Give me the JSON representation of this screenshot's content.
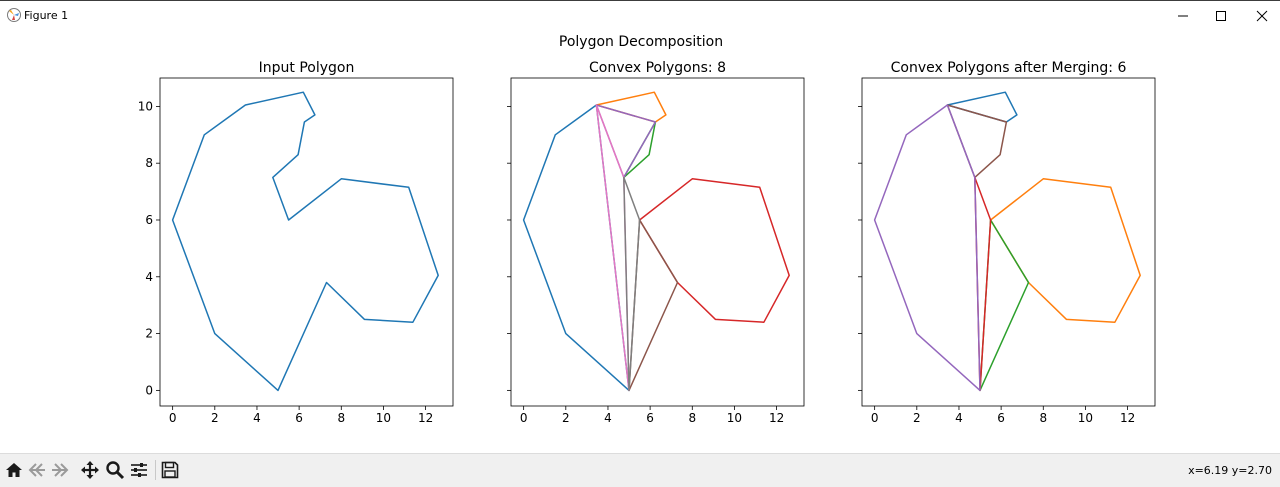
{
  "window": {
    "title": "Figure 1",
    "icons": [
      "matplotlib-icon",
      "minimize-icon",
      "maximize-icon",
      "close-icon"
    ]
  },
  "figure": {
    "suptitle": "Polygon Decomposition",
    "colors": {
      "blue": "#1f77b4",
      "orange": "#ff7f0e",
      "green": "#2ca02c",
      "red": "#d62728",
      "purple": "#9467bd",
      "brown": "#8c564b",
      "pink": "#e377c2",
      "gray": "#7f7f7f"
    }
  },
  "chart_data": [
    {
      "type": "line",
      "title": "Input Polygon",
      "xlim": [
        -0.6,
        13.3
      ],
      "ylim": [
        -0.55,
        11.0
      ],
      "xticks": [
        0,
        2,
        4,
        6,
        8,
        10,
        12
      ],
      "yticks": [
        0,
        2,
        4,
        6,
        8,
        10
      ],
      "xlabel": "",
      "ylabel": "",
      "series": [
        {
          "color": "#1f77b4",
          "points": [
            [
              5.0,
              0.0
            ],
            [
              7.3,
              3.8
            ],
            [
              9.1,
              2.5
            ],
            [
              11.4,
              2.4
            ],
            [
              12.6,
              4.05
            ],
            [
              11.2,
              7.15
            ],
            [
              8.0,
              7.45
            ],
            [
              5.5,
              6.0
            ],
            [
              4.75,
              7.5
            ],
            [
              5.95,
              8.3
            ],
            [
              6.25,
              9.45
            ],
            [
              6.75,
              9.7
            ],
            [
              6.2,
              10.5
            ],
            [
              3.45,
              10.05
            ],
            [
              1.5,
              9.0
            ],
            [
              0.0,
              6.0
            ],
            [
              2.0,
              2.0
            ],
            [
              5.0,
              0.0
            ]
          ]
        }
      ]
    },
    {
      "type": "line",
      "title": "Convex Polygons: 8",
      "xlim": [
        -0.6,
        13.3
      ],
      "ylim": [
        -0.55,
        11.0
      ],
      "xticks": [
        0,
        2,
        4,
        6,
        8,
        10,
        12
      ],
      "yticks": [
        0,
        2,
        4,
        6,
        8,
        10
      ],
      "xlabel": "",
      "ylabel": "",
      "series": [
        {
          "color": "#1f77b4",
          "points": [
            [
              5.0,
              0.0
            ],
            [
              2.0,
              2.0
            ],
            [
              0.0,
              6.0
            ],
            [
              1.5,
              9.0
            ],
            [
              3.45,
              10.05
            ],
            [
              5.0,
              0.0
            ]
          ]
        },
        {
          "color": "#ff7f0e",
          "points": [
            [
              3.45,
              10.05
            ],
            [
              6.2,
              10.5
            ],
            [
              6.75,
              9.7
            ],
            [
              6.25,
              9.45
            ],
            [
              3.45,
              10.05
            ]
          ]
        },
        {
          "color": "#2ca02c",
          "points": [
            [
              6.25,
              9.45
            ],
            [
              5.95,
              8.3
            ],
            [
              4.75,
              7.5
            ],
            [
              6.25,
              9.45
            ]
          ]
        },
        {
          "color": "#d62728",
          "points": [
            [
              5.5,
              6.0
            ],
            [
              8.0,
              7.45
            ],
            [
              11.2,
              7.15
            ],
            [
              12.6,
              4.05
            ],
            [
              11.4,
              2.4
            ],
            [
              9.1,
              2.5
            ],
            [
              7.3,
              3.8
            ],
            [
              5.5,
              6.0
            ]
          ]
        },
        {
          "color": "#9467bd",
          "points": [
            [
              3.45,
              10.05
            ],
            [
              6.25,
              9.45
            ],
            [
              4.75,
              7.5
            ],
            [
              3.45,
              10.05
            ]
          ]
        },
        {
          "color": "#8c564b",
          "points": [
            [
              5.0,
              0.0
            ],
            [
              7.3,
              3.8
            ],
            [
              5.5,
              6.0
            ],
            [
              5.0,
              0.0
            ]
          ]
        },
        {
          "color": "#e377c2",
          "points": [
            [
              3.45,
              10.05
            ],
            [
              4.75,
              7.5
            ],
            [
              5.0,
              0.0
            ],
            [
              3.45,
              10.05
            ]
          ]
        },
        {
          "color": "#7f7f7f",
          "points": [
            [
              4.75,
              7.5
            ],
            [
              5.5,
              6.0
            ],
            [
              5.0,
              0.0
            ],
            [
              4.75,
              7.5
            ]
          ]
        }
      ]
    },
    {
      "type": "line",
      "title": "Convex Polygons after Merging: 6",
      "xlim": [
        -0.6,
        13.3
      ],
      "ylim": [
        -0.55,
        11.0
      ],
      "xticks": [
        0,
        2,
        4,
        6,
        8,
        10,
        12
      ],
      "yticks": [
        0,
        2,
        4,
        6,
        8,
        10
      ],
      "xlabel": "",
      "ylabel": "",
      "series": [
        {
          "color": "#1f77b4",
          "points": [
            [
              3.45,
              10.05
            ],
            [
              6.2,
              10.5
            ],
            [
              6.75,
              9.7
            ],
            [
              6.25,
              9.45
            ],
            [
              3.45,
              10.05
            ]
          ]
        },
        {
          "color": "#ff7f0e",
          "points": [
            [
              5.5,
              6.0
            ],
            [
              8.0,
              7.45
            ],
            [
              11.2,
              7.15
            ],
            [
              12.6,
              4.05
            ],
            [
              11.4,
              2.4
            ],
            [
              9.1,
              2.5
            ],
            [
              7.3,
              3.8
            ],
            [
              5.5,
              6.0
            ]
          ]
        },
        {
          "color": "#2ca02c",
          "points": [
            [
              5.0,
              0.0
            ],
            [
              7.3,
              3.8
            ],
            [
              5.5,
              6.0
            ],
            [
              5.0,
              0.0
            ]
          ]
        },
        {
          "color": "#8c564b",
          "points": [
            [
              3.45,
              10.05
            ],
            [
              6.25,
              9.45
            ],
            [
              5.95,
              8.3
            ],
            [
              4.75,
              7.5
            ],
            [
              3.45,
              10.05
            ]
          ]
        },
        {
          "color": "#d62728",
          "points": [
            [
              4.75,
              7.5
            ],
            [
              5.5,
              6.0
            ],
            [
              5.0,
              0.0
            ],
            [
              4.75,
              7.5
            ]
          ]
        },
        {
          "color": "#9467bd",
          "points": [
            [
              3.45,
              10.05
            ],
            [
              4.75,
              7.5
            ],
            [
              5.0,
              0.0
            ],
            [
              2.0,
              2.0
            ],
            [
              0.0,
              6.0
            ],
            [
              1.5,
              9.0
            ],
            [
              3.45,
              10.05
            ]
          ]
        }
      ]
    }
  ],
  "toolbar": {
    "icons": [
      "home-icon",
      "back-icon",
      "forward-icon",
      "pan-icon",
      "zoom-icon",
      "configure-subplots-icon",
      "save-icon"
    ],
    "coords": "x=6.19 y=2.70"
  }
}
